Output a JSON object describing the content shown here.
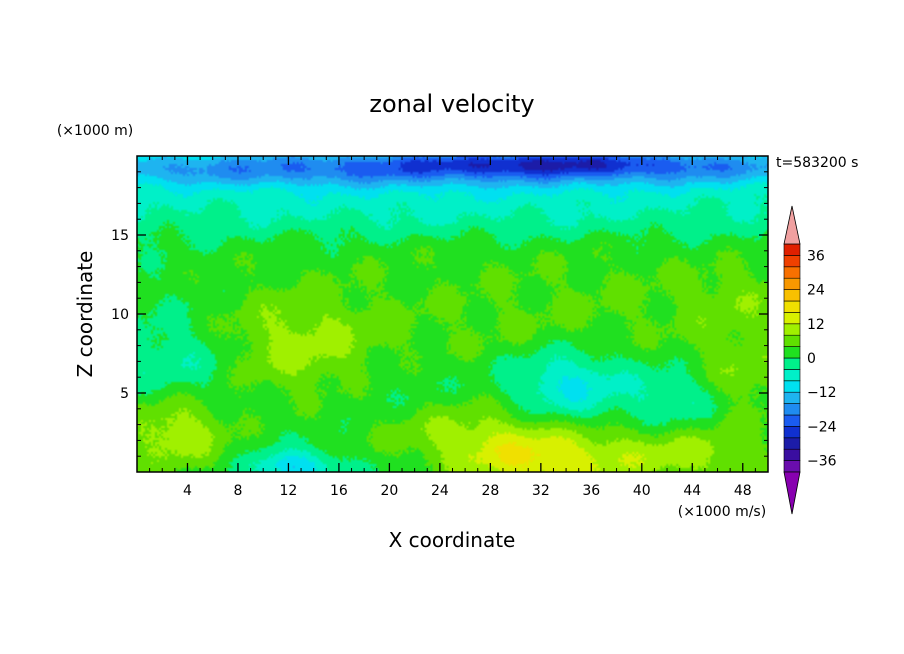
{
  "chart_data": {
    "type": "heatmap",
    "title": "zonal velocity",
    "xlabel": "X coordinate",
    "ylabel": "Z coordinate",
    "x_unit": "(×1000 m/s)",
    "y_unit": "(×1000 m)",
    "time_label": "t=583200 s",
    "xlim": [
      0,
      50
    ],
    "ylim": [
      0,
      20
    ],
    "x_ticks": [
      "4",
      "8",
      "12",
      "16",
      "20",
      "24",
      "28",
      "32",
      "36",
      "40",
      "44",
      "48"
    ],
    "y_ticks": [
      "5",
      "10",
      "15"
    ],
    "colorbar": {
      "levels": [
        -40,
        -36,
        -32,
        -28,
        -24,
        -20,
        -16,
        -12,
        -8,
        -4,
        0,
        4,
        8,
        12,
        16,
        20,
        24,
        28,
        32,
        36,
        40
      ],
      "colors": [
        "#6a0dad",
        "#3a0ea0",
        "#1c1ca8",
        "#1030d0",
        "#1a5cf0",
        "#1f8cf0",
        "#1eb4f0",
        "#00e0f0",
        "#00f0c8",
        "#00f08a",
        "#20e020",
        "#60e000",
        "#a0f000",
        "#d8f000",
        "#f0e000",
        "#f8c000",
        "#f89800",
        "#f87000",
        "#f04000",
        "#e02000"
      ],
      "tick_labels": [
        "36",
        "24",
        "12",
        "0",
        "−12",
        "−24",
        "−36"
      ],
      "over_color": "#f0a0a0",
      "under_color": "#8800b0"
    },
    "field_blobs": [
      {
        "x": 25,
        "y": 19.3,
        "sx": 30,
        "sy": 0.8,
        "v": -18
      },
      {
        "x": 33,
        "y": 19.6,
        "sx": 8,
        "sy": 0.5,
        "v": -10
      },
      {
        "x": 25,
        "y": 18.0,
        "sx": 30,
        "sy": 1.2,
        "v": -6
      },
      {
        "x": 25,
        "y": 16.0,
        "sx": 25,
        "sy": 1.0,
        "v": -3
      },
      {
        "x": 25,
        "y": 13.5,
        "sx": 22,
        "sy": 1.5,
        "v": 2
      },
      {
        "x": 13,
        "y": 8.0,
        "sx": 6,
        "sy": 2.6,
        "v": 10
      },
      {
        "x": 3,
        "y": 2.5,
        "sx": 3.2,
        "sy": 1.8,
        "v": 11
      },
      {
        "x": 32,
        "y": 0.6,
        "sx": 5,
        "sy": 1.4,
        "v": 14
      },
      {
        "x": 26,
        "y": 2.6,
        "sx": 6,
        "sy": 1.5,
        "v": 8
      },
      {
        "x": 44,
        "y": 1.2,
        "sx": 5,
        "sy": 1.5,
        "v": 9
      },
      {
        "x": 48,
        "y": 6.0,
        "sx": 3,
        "sy": 2.0,
        "v": 7
      },
      {
        "x": 34,
        "y": 5.5,
        "sx": 3.2,
        "sy": 1.6,
        "v": -10
      },
      {
        "x": 43,
        "y": 4.5,
        "sx": 2.8,
        "sy": 1.5,
        "v": -6
      },
      {
        "x": 4,
        "y": 6.8,
        "sx": 3.5,
        "sy": 2.0,
        "v": -6
      },
      {
        "x": 12.5,
        "y": 0.3,
        "sx": 2.2,
        "sy": 0.7,
        "v": -12
      },
      {
        "x": 40,
        "y": 10.0,
        "sx": 8,
        "sy": 2.5,
        "v": 4
      },
      {
        "x": 27,
        "y": 9.0,
        "sx": 6,
        "sy": 2.5,
        "v": 3
      },
      {
        "x": 48,
        "y": 11.0,
        "sx": 3,
        "sy": 1.5,
        "v": 4
      },
      {
        "x": 20,
        "y": 5.5,
        "sx": 4,
        "sy": 2.5,
        "v": -3
      }
    ]
  }
}
